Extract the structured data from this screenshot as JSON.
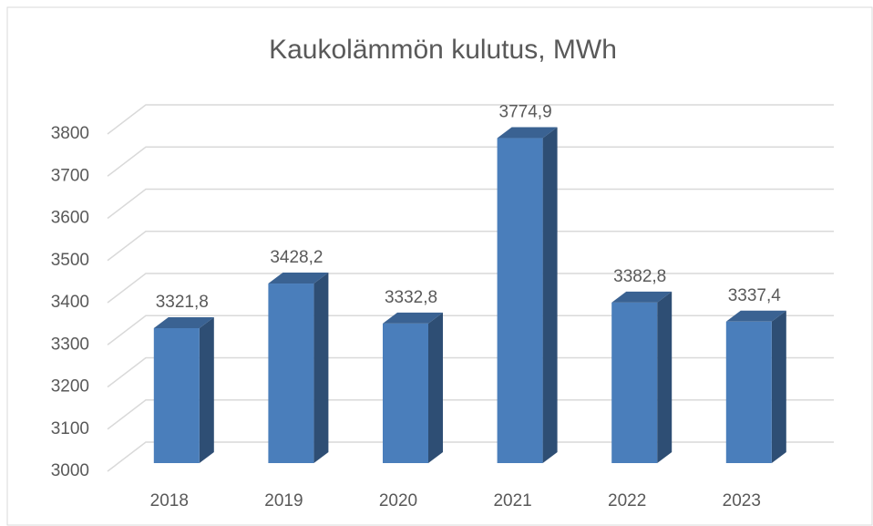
{
  "chart_data": {
    "type": "bar3d",
    "title": "Kaukolämmön kulutus, MWh",
    "categories": [
      "2018",
      "2019",
      "2020",
      "2021",
      "2022",
      "2023"
    ],
    "values": [
      3321.8,
      3428.2,
      3332.8,
      3774.9,
      3382.8,
      3337.4
    ],
    "value_labels": [
      "3321,8",
      "3428,2",
      "3332,8",
      "3774,9",
      "3382,8",
      "3337,4"
    ],
    "color": "#4a7ebb",
    "ylim": [
      3000,
      3800
    ],
    "yticks": [
      3000,
      3100,
      3200,
      3300,
      3400,
      3500,
      3600,
      3700,
      3800
    ],
    "grid": true
  }
}
